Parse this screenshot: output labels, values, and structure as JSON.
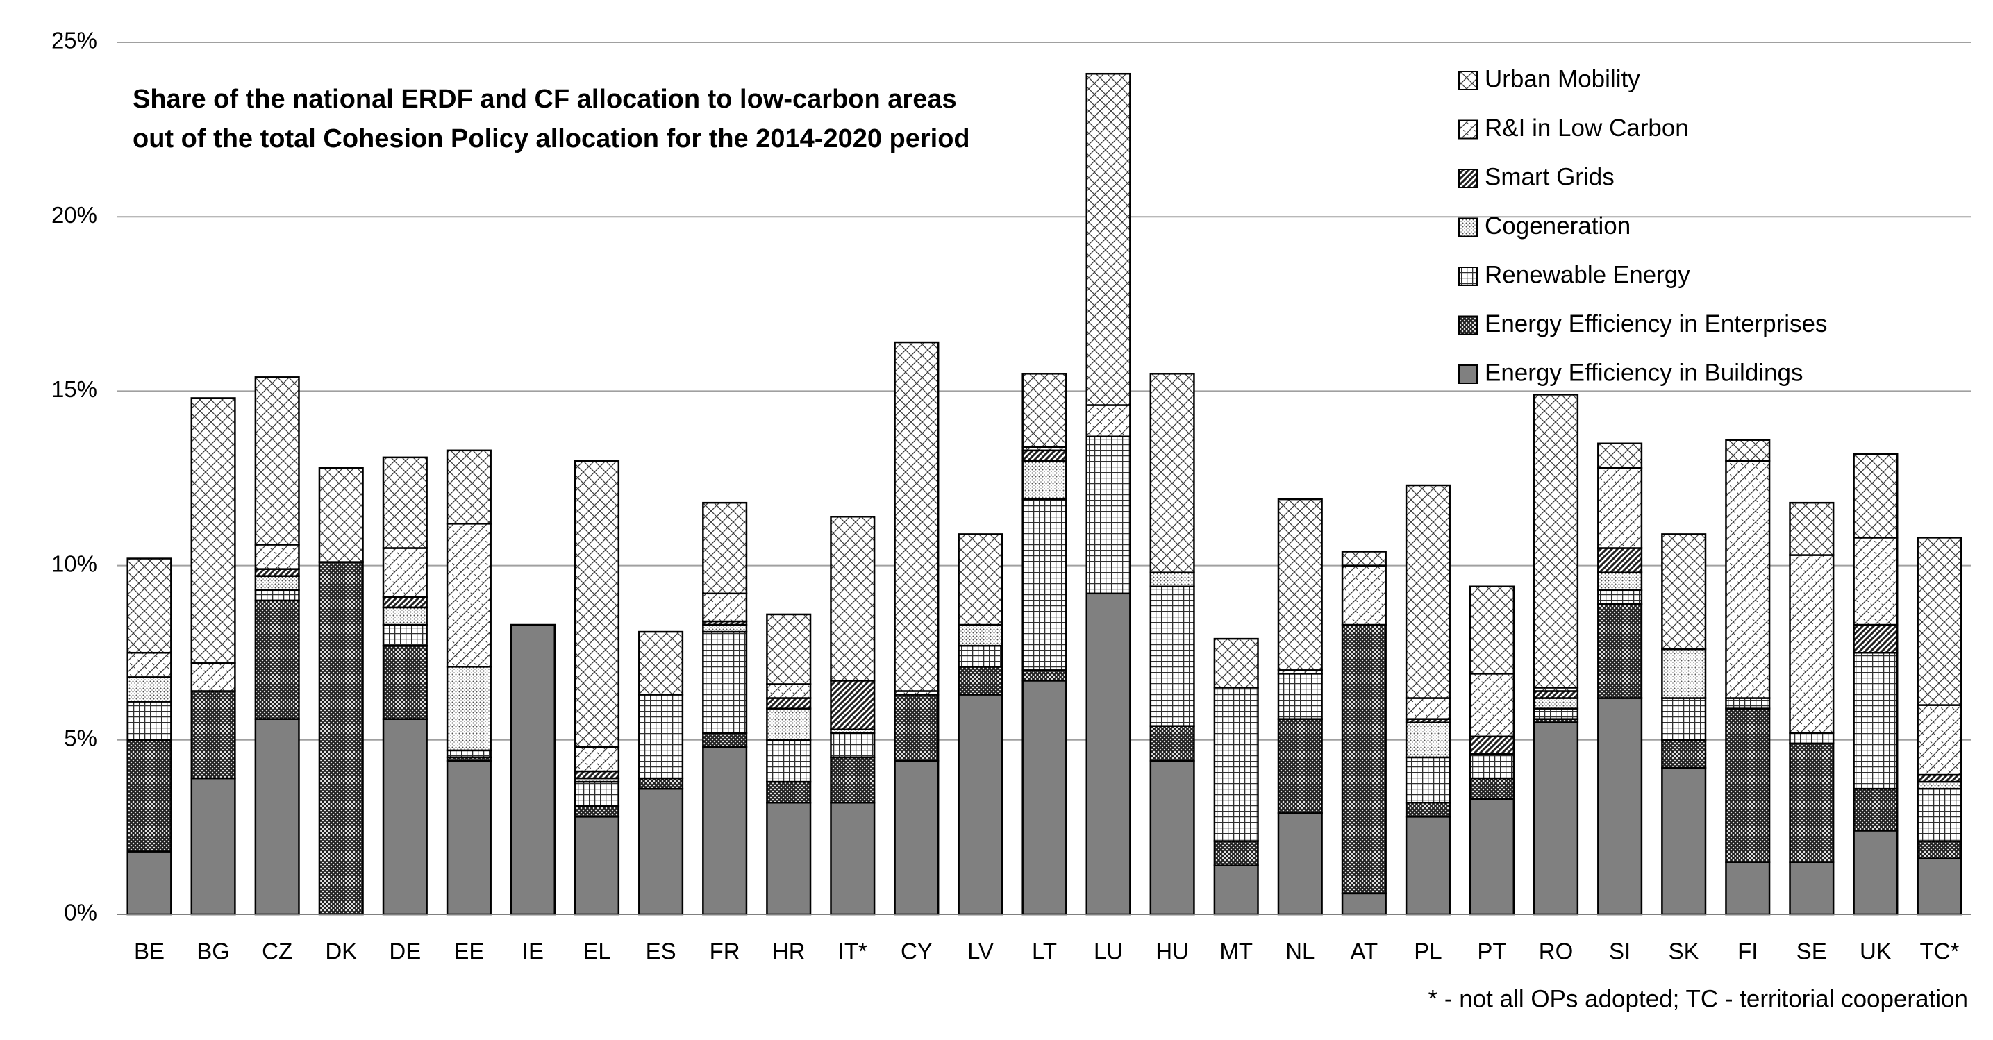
{
  "chart_data": {
    "type": "stacked_bar",
    "title": [
      "Share of the national ERDF and CF allocation to low-carbon areas",
      "out of the total Cohesion Policy allocation for the 2014-2020 period"
    ],
    "note": "* - not all OPs adopted; TC - territorial cooperation",
    "categories": [
      "BE",
      "BG",
      "CZ",
      "DK",
      "DE",
      "EE",
      "IE",
      "EL",
      "ES",
      "FR",
      "HR",
      "IT*",
      "CY",
      "LV",
      "LT",
      "LU",
      "HU",
      "MT",
      "NL",
      "AT",
      "PL",
      "PT",
      "RO",
      "SI",
      "SK",
      "FI",
      "SE",
      "UK",
      "TC*"
    ],
    "series": [
      {
        "name": "Energy Efficiency in Buildings",
        "color": "#808080",
        "pattern": "solid",
        "values": [
          1.8,
          3.9,
          5.6,
          0,
          5.6,
          4.4,
          8.3,
          2.8,
          3.6,
          4.8,
          3.2,
          3.2,
          4.4,
          6.3,
          6.7,
          9.2,
          4.4,
          1.4,
          2.9,
          0.6,
          2.8,
          3.3,
          5.5,
          6.2,
          4.2,
          1.5,
          1.5,
          2.4,
          1.6
        ]
      },
      {
        "name": "Energy Efficiency in Enterprises",
        "color": "#404040",
        "pattern": "dense-cross",
        "values": [
          3.2,
          2.5,
          3.4,
          10.1,
          2.1,
          0.1,
          0,
          0.3,
          0.3,
          0.4,
          0.6,
          1.3,
          1.9,
          0.8,
          0.3,
          0,
          1.0,
          0.7,
          2.7,
          7.7,
          0.4,
          0.6,
          0.1,
          2.7,
          0.8,
          4.4,
          3.4,
          1.2,
          0.5
        ]
      },
      {
        "name": "Renewable Energy",
        "color": "#404040",
        "pattern": "grid",
        "values": [
          1.1,
          0,
          0.3,
          0,
          0.6,
          0.2,
          0,
          0.7,
          2.4,
          2.9,
          1.2,
          0.7,
          0,
          0.6,
          4.9,
          4.5,
          4.0,
          4.4,
          1.3,
          0,
          1.3,
          0.7,
          0.3,
          0.4,
          1.2,
          0.3,
          0.3,
          3.9,
          1.5
        ]
      },
      {
        "name": "Cogeneration",
        "color": "#606060",
        "pattern": "dots",
        "values": [
          0.7,
          0,
          0.4,
          0,
          0.5,
          2.4,
          0,
          0.1,
          0,
          0.2,
          0.9,
          0.1,
          0,
          0.6,
          1.1,
          0,
          0.4,
          0,
          0,
          0,
          1.0,
          0,
          0.3,
          0.5,
          1.4,
          0,
          0,
          0,
          0.2
        ]
      },
      {
        "name": "Smart Grids",
        "color": "#202020",
        "pattern": "stripes",
        "values": [
          0,
          0,
          0.2,
          0,
          0.3,
          0,
          0,
          0.2,
          0,
          0.1,
          0.3,
          1.4,
          0,
          0,
          0.3,
          0,
          0,
          0,
          0,
          0,
          0.1,
          0.5,
          0.2,
          0.7,
          0,
          0,
          0,
          0.8,
          0.2
        ]
      },
      {
        "name": "R&I in Low Carbon",
        "color": "#404040",
        "pattern": "light-diag",
        "values": [
          0.7,
          0.8,
          0.7,
          0,
          1.4,
          4.1,
          0,
          0.7,
          0,
          0.8,
          0.4,
          0,
          0.1,
          0,
          0.1,
          0.9,
          0,
          0,
          0.1,
          1.7,
          0.6,
          1.8,
          0.1,
          2.3,
          0,
          6.8,
          5.1,
          2.5,
          2.0
        ]
      },
      {
        "name": "Urban Mobility",
        "color": "#404040",
        "pattern": "cross",
        "values": [
          2.7,
          7.6,
          4.8,
          2.7,
          2.6,
          2.1,
          0,
          8.2,
          1.8,
          2.6,
          2.0,
          4.7,
          10.0,
          2.6,
          2.1,
          9.5,
          5.7,
          1.4,
          4.9,
          0.4,
          6.1,
          2.5,
          8.4,
          0.7,
          3.3,
          0.6,
          1.5,
          2.4,
          4.8
        ]
      }
    ],
    "ylim": [
      0,
      25
    ],
    "yticks": [
      {
        "value": 0,
        "label": "0%"
      },
      {
        "value": 5,
        "label": "5%"
      },
      {
        "value": 10,
        "label": "10%"
      },
      {
        "value": 15,
        "label": "15%"
      },
      {
        "value": 20,
        "label": "20%"
      },
      {
        "value": 25,
        "label": "25%"
      }
    ],
    "grid": true,
    "legend": "top-right"
  }
}
